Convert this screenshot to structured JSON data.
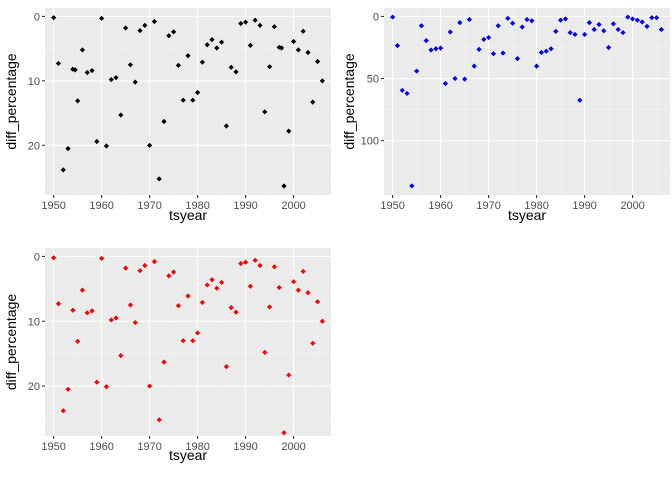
{
  "chart_data": [
    {
      "type": "scatter",
      "xlabel": "tsyear",
      "ylabel": "diff_percentage",
      "y_reversed": true,
      "xlim": [
        1948.2,
        2007.8
      ],
      "ylim": [
        -1.3,
        27.7
      ],
      "x_ticks": [
        1950,
        1960,
        1970,
        1980,
        1990,
        2000
      ],
      "x_tick_labels": [
        "1950",
        "1960",
        "1970",
        "1980",
        "1990",
        "2000"
      ],
      "y_ticks": [
        0,
        10,
        20
      ],
      "y_tick_labels": [
        "0",
        "10",
        "20"
      ],
      "grid": true,
      "legend": "none",
      "point_color": "#000000",
      "panel_background": "#ebebeb",
      "series": [
        {
          "x": [
            1950,
            1951,
            1952,
            1953,
            1954,
            1954.5,
            1955,
            1956,
            1957,
            1958,
            1959,
            1960,
            1961,
            1962,
            1963,
            1964,
            1965,
            1966,
            1967,
            1968,
            1969,
            1970,
            1971,
            1972,
            1973,
            1974,
            1975,
            1976,
            1977,
            1978,
            1979,
            1980,
            1981,
            1982,
            1983,
            1984,
            1985,
            1986,
            1987,
            1988,
            1989,
            1990,
            1991,
            1992,
            1993,
            1994,
            1995,
            1996,
            1997,
            1997.5,
            1998,
            1999,
            2000,
            2001,
            2002,
            2003,
            2004,
            2005,
            2006
          ],
          "y": [
            0.2,
            7.3,
            23.8,
            20.5,
            8.2,
            8.3,
            13.1,
            5.2,
            8.7,
            8.4,
            19.4,
            0.3,
            20.1,
            9.8,
            9.5,
            15.3,
            1.8,
            7.5,
            10.2,
            2.2,
            1.4,
            20.0,
            0.8,
            25.2,
            16.3,
            3.0,
            2.4,
            7.6,
            13.0,
            6.1,
            13.0,
            11.8,
            7.1,
            4.4,
            3.6,
            4.9,
            4.0,
            17.0,
            7.9,
            8.6,
            1.1,
            0.9,
            4.5,
            0.6,
            1.4,
            14.8,
            7.8,
            1.6,
            4.8,
            4.9,
            26.3,
            17.8,
            3.9,
            5.2,
            2.3,
            5.6,
            13.3,
            7.0,
            10.0
          ]
        }
      ]
    },
    {
      "type": "scatter",
      "xlabel": "tsyear",
      "ylabel": "diff_percentage",
      "y_reversed": true,
      "xlim": [
        1948.2,
        2007.8
      ],
      "ylim": [
        -6.8,
        143.8
      ],
      "x_ticks": [
        1950,
        1960,
        1970,
        1980,
        1990,
        2000
      ],
      "x_tick_labels": [
        "1950",
        "1960",
        "1970",
        "1980",
        "1990",
        "2000"
      ],
      "y_ticks": [
        0,
        50,
        100
      ],
      "y_tick_labels": [
        "0",
        "50",
        "100"
      ],
      "grid": true,
      "legend": "none",
      "point_color": "#0000ff",
      "panel_background": "#ebebeb",
      "series": [
        {
          "x": [
            1950,
            1951,
            1952,
            1953,
            1954,
            1955,
            1956,
            1957,
            1958,
            1959,
            1960,
            1961,
            1962,
            1963,
            1964,
            1965,
            1966,
            1967,
            1968,
            1969,
            1970,
            1971,
            1972,
            1973,
            1974,
            1975,
            1976,
            1977,
            1978,
            1979,
            1980,
            1981,
            1982,
            1983,
            1984,
            1985,
            1986,
            1987,
            1988,
            1989,
            1990,
            1991,
            1992,
            1993,
            1994,
            1995,
            1996,
            1997,
            1998,
            1999,
            2000,
            2001,
            2002,
            2003,
            2004,
            2005,
            2006
          ],
          "y": [
            0.5,
            23.5,
            59.5,
            62.0,
            136.5,
            44.0,
            7.5,
            19.5,
            27.0,
            26.0,
            25.5,
            54.0,
            12.5,
            50.0,
            5.0,
            50.5,
            2.5,
            40.0,
            26.5,
            18.5,
            17.0,
            30.0,
            7.5,
            29.5,
            1.5,
            5.5,
            34.0,
            8.5,
            2.5,
            3.5,
            40.0,
            29.0,
            28.0,
            26.0,
            12.0,
            3.0,
            2.0,
            13.0,
            14.5,
            67.5,
            14.5,
            5.0,
            10.5,
            6.5,
            11.5,
            25.0,
            6.0,
            10.5,
            13.0,
            0.5,
            2.0,
            3.0,
            4.5,
            8.0,
            1.0,
            1.0,
            10.5
          ]
        }
      ]
    },
    {
      "type": "scatter",
      "xlabel": "tsyear",
      "ylabel": "diff_percentage",
      "y_reversed": true,
      "xlim": [
        1948.2,
        2007.8
      ],
      "ylim": [
        -1.3,
        27.7
      ],
      "x_ticks": [
        1950,
        1960,
        1970,
        1980,
        1990,
        2000
      ],
      "x_tick_labels": [
        "1950",
        "1960",
        "1970",
        "1980",
        "1990",
        "2000"
      ],
      "y_ticks": [
        0,
        10,
        20
      ],
      "y_tick_labels": [
        "0",
        "10",
        "20"
      ],
      "grid": true,
      "legend": "none",
      "point_color": "#ff0000",
      "panel_background": "#ebebeb",
      "series": [
        {
          "x": [
            1950,
            1951,
            1952,
            1953,
            1954,
            1955,
            1956,
            1957,
            1958,
            1959,
            1960,
            1961,
            1962,
            1963,
            1964,
            1965,
            1966,
            1967,
            1968,
            1969,
            1970,
            1971,
            1972,
            1973,
            1974,
            1975,
            1976,
            1977,
            1978,
            1979,
            1980,
            1981,
            1982,
            1983,
            1984,
            1985,
            1986,
            1987,
            1988,
            1989,
            1990,
            1991,
            1992,
            1993,
            1994,
            1995,
            1996,
            1997,
            1998,
            1999,
            2000,
            2001,
            2002,
            2003,
            2004,
            2005,
            2006
          ],
          "y": [
            0.2,
            7.3,
            23.8,
            20.5,
            8.3,
            13.1,
            5.2,
            8.7,
            8.4,
            19.4,
            0.3,
            20.1,
            9.8,
            9.5,
            15.3,
            1.8,
            7.5,
            10.2,
            2.2,
            1.4,
            20.0,
            0.8,
            25.2,
            16.3,
            3.0,
            2.4,
            7.6,
            13.0,
            6.1,
            13.0,
            11.8,
            7.1,
            4.4,
            3.6,
            4.9,
            4.0,
            17.0,
            7.9,
            8.6,
            1.1,
            0.9,
            4.6,
            0.6,
            1.4,
            14.8,
            7.8,
            1.6,
            4.8,
            27.2,
            18.3,
            3.9,
            5.2,
            2.3,
            5.6,
            13.4,
            7.0,
            10.0
          ]
        }
      ]
    }
  ]
}
